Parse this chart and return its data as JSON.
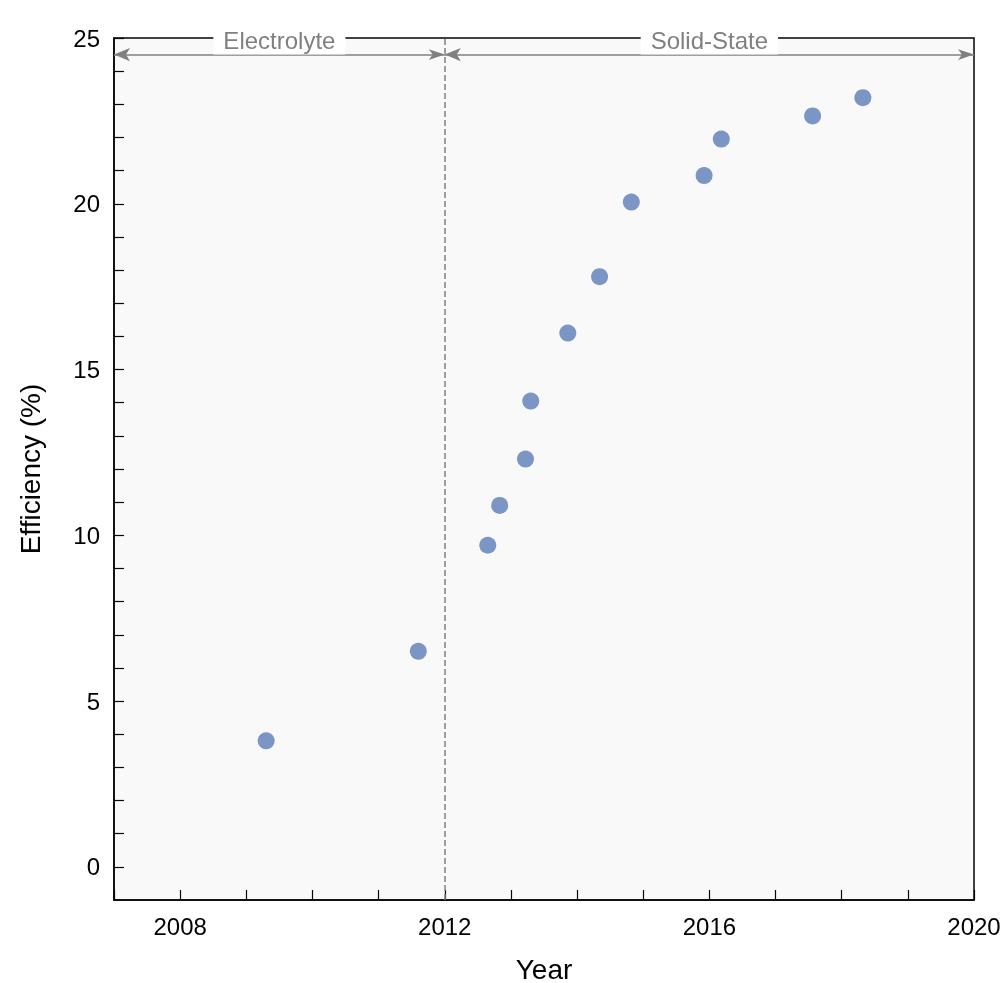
{
  "chart_data": {
    "type": "scatter",
    "xlabel": "Year",
    "ylabel": "Efficiency (%)",
    "x": [
      2009.3,
      2011.6,
      2012.65,
      2012.83,
      2013.22,
      2013.3,
      2013.86,
      2014.34,
      2014.82,
      2015.92,
      2016.18,
      2017.56,
      2018.32
    ],
    "series": [
      {
        "color": "#5b7db8",
        "values": [
          3.8,
          6.5,
          9.7,
          10.9,
          12.3,
          14.05,
          16.1,
          17.8,
          20.05,
          20.85,
          21.95,
          22.65,
          23.2
        ]
      }
    ],
    "xlim": [
      2007,
      2020
    ],
    "xticks": [
      {
        "value": 2007,
        "label": null
      },
      2008,
      {
        "value": 2009,
        "label": null
      },
      {
        "value": 2010,
        "label": null
      },
      {
        "value": 2011,
        "label": null
      },
      2012,
      {
        "value": 2013,
        "label": null
      },
      {
        "value": 2014,
        "label": null
      },
      {
        "value": 2015,
        "label": null
      },
      2016,
      {
        "value": 2017,
        "label": null
      },
      {
        "value": 2018,
        "label": null
      },
      {
        "value": 2019,
        "label": null
      },
      2020
    ],
    "ylim": [
      -1,
      25
    ],
    "yticks": [
      0,
      {
        "value": 1,
        "label": null
      },
      {
        "value": 2,
        "label": null
      },
      {
        "value": 3,
        "label": null
      },
      {
        "value": 4,
        "label": null
      },
      5,
      {
        "value": 6,
        "label": null
      },
      {
        "value": 7,
        "label": null
      },
      {
        "value": 8,
        "label": null
      },
      {
        "value": 9,
        "label": null
      },
      10,
      {
        "value": 11,
        "label": null
      },
      {
        "value": 12,
        "label": null
      },
      {
        "value": 13,
        "label": null
      },
      {
        "value": 14,
        "label": null
      },
      15,
      {
        "value": 16,
        "label": null
      },
      {
        "value": 17,
        "label": null
      },
      {
        "value": 18,
        "label": null
      },
      {
        "value": 19,
        "label": null
      },
      20,
      {
        "value": 21,
        "label": null
      },
      {
        "value": 22,
        "label": null
      },
      {
        "value": 23,
        "label": null
      },
      {
        "value": 24,
        "label": null
      },
      25
    ],
    "ref_lines": [
      {
        "axis": "x",
        "value": 2012,
        "color": "#808080",
        "line_style": "dashed"
      }
    ],
    "bands": [
      {
        "axis": "x",
        "from": 2007,
        "to": 2012,
        "label": "Electrolyte",
        "color": "#808080"
      },
      {
        "axis": "x",
        "from": 2012,
        "to": 2020,
        "label": "Solid-State",
        "color": "#808080"
      }
    ],
    "marker": "circle",
    "grid": false
  }
}
